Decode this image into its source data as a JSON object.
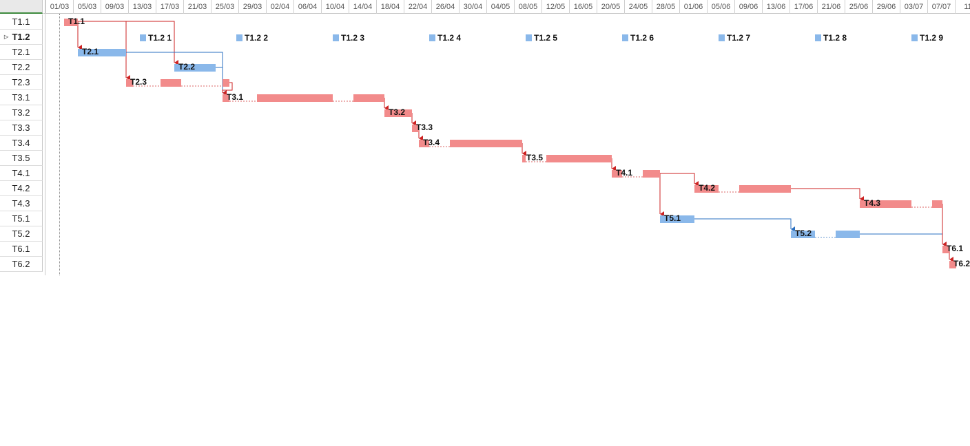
{
  "timeline": {
    "ticks": [
      "01/03",
      "05/03",
      "09/03",
      "13/03",
      "17/03",
      "21/03",
      "25/03",
      "29/03",
      "02/04",
      "06/04",
      "10/04",
      "14/04",
      "18/04",
      "22/04",
      "26/04",
      "30/04",
      "04/05",
      "08/05",
      "12/05",
      "16/05",
      "20/05",
      "24/05",
      "28/05",
      "01/06",
      "05/06",
      "09/06",
      "13/06",
      "17/06",
      "21/06",
      "25/06",
      "29/06",
      "03/07",
      "07/07",
      "11/"
    ]
  },
  "colors": {
    "critical_fill": "#f28b8b",
    "critical_line": "#cc2222",
    "normal_fill": "#8ab8ea",
    "normal_line": "#2a6fc0"
  },
  "rows": [
    {
      "id": "T1.1",
      "bold": false
    },
    {
      "id": "T1.2",
      "bold": true,
      "expander": "▷"
    },
    {
      "id": "T2.1",
      "bold": false
    },
    {
      "id": "T2.2",
      "bold": false
    },
    {
      "id": "T2.3",
      "bold": false
    },
    {
      "id": "T3.1",
      "bold": false
    },
    {
      "id": "T3.2",
      "bold": false
    },
    {
      "id": "T3.3",
      "bold": false
    },
    {
      "id": "T3.4",
      "bold": false
    },
    {
      "id": "T3.5",
      "bold": false
    },
    {
      "id": "T4.1",
      "bold": false
    },
    {
      "id": "T4.2",
      "bold": false
    },
    {
      "id": "T4.3",
      "bold": false
    },
    {
      "id": "T5.1",
      "bold": false
    },
    {
      "id": "T5.2",
      "bold": false
    },
    {
      "id": "T6.1",
      "bold": false
    },
    {
      "id": "T6.2",
      "bold": false
    }
  ],
  "chart_data": {
    "type": "gantt",
    "time_unit": "day-of-2020-from-01-03",
    "tasks": [
      {
        "label": "T1.1",
        "row": 0,
        "critical": true,
        "segments": [
          [
            0,
            2
          ]
        ]
      },
      {
        "label": "T2.1",
        "row": 2,
        "critical": false,
        "segments": [
          [
            2,
            9
          ]
        ]
      },
      {
        "label": "T2.2",
        "row": 3,
        "critical": false,
        "segments": [
          [
            16,
            22
          ]
        ]
      },
      {
        "label": "T2.3",
        "row": 4,
        "critical": true,
        "segments": [
          [
            9,
            10
          ],
          [
            14,
            17
          ],
          [
            23,
            24
          ]
        ]
      },
      {
        "label": "T3.1",
        "row": 5,
        "critical": true,
        "segments": [
          [
            23,
            24
          ],
          [
            28,
            39
          ],
          [
            42,
            46.5
          ]
        ]
      },
      {
        "label": "T3.2",
        "row": 6,
        "critical": true,
        "segments": [
          [
            46.5,
            50.5
          ]
        ]
      },
      {
        "label": "T3.3",
        "row": 7,
        "critical": true,
        "segments": [
          [
            50.5,
            51.5
          ]
        ]
      },
      {
        "label": "T3.4",
        "row": 8,
        "critical": true,
        "segments": [
          [
            51.5,
            53
          ],
          [
            56,
            66.5
          ]
        ]
      },
      {
        "label": "T3.5",
        "row": 9,
        "critical": true,
        "segments": [
          [
            66.5,
            67
          ],
          [
            70,
            79.5
          ]
        ]
      },
      {
        "label": "T4.1",
        "row": 10,
        "critical": true,
        "segments": [
          [
            79.5,
            81
          ],
          [
            84,
            86.5
          ]
        ]
      },
      {
        "label": "T4.2",
        "row": 11,
        "critical": true,
        "segments": [
          [
            91.5,
            95
          ],
          [
            98,
            105.5
          ]
        ]
      },
      {
        "label": "T4.3",
        "row": 12,
        "critical": true,
        "segments": [
          [
            115.5,
            123
          ],
          [
            126,
            127.5
          ]
        ]
      },
      {
        "label": "T5.1",
        "row": 13,
        "critical": false,
        "segments": [
          [
            86.5,
            91.5
          ]
        ]
      },
      {
        "label": "T5.2",
        "row": 14,
        "critical": false,
        "segments": [
          [
            105.5,
            109
          ],
          [
            112,
            115.5
          ]
        ]
      },
      {
        "label": "T6.1",
        "row": 15,
        "critical": true,
        "segments": [
          [
            127.5,
            128.5
          ]
        ]
      },
      {
        "label": "T6.2",
        "row": 16,
        "critical": true,
        "segments": [
          [
            128.5,
            129.5
          ]
        ]
      }
    ],
    "milestones": [
      {
        "label": "T1.2 1",
        "row": 1,
        "t": 11
      },
      {
        "label": "T1.2 2",
        "row": 1,
        "t": 25
      },
      {
        "label": "T1.2 3",
        "row": 1,
        "t": 39
      },
      {
        "label": "T1.2 4",
        "row": 1,
        "t": 53
      },
      {
        "label": "T1.2 5",
        "row": 1,
        "t": 67
      },
      {
        "label": "T1.2 6",
        "row": 1,
        "t": 81
      },
      {
        "label": "T1.2 7",
        "row": 1,
        "t": 95
      },
      {
        "label": "T1.2 8",
        "row": 1,
        "t": 109
      },
      {
        "label": "T1.2 9",
        "row": 1,
        "t": 123
      }
    ],
    "links": [
      {
        "from": "T1.1",
        "to": "T2.1",
        "critical": true
      },
      {
        "from": "T1.1",
        "to": "T2.3",
        "critical": true
      },
      {
        "from": "T1.1",
        "to": "T2.2",
        "critical": true
      },
      {
        "from": "T2.1",
        "to": "T3.1",
        "critical": false
      },
      {
        "from": "T2.2",
        "to": "T3.1",
        "critical": false
      },
      {
        "from": "T2.3",
        "to": "T3.1",
        "critical": true
      },
      {
        "from": "T3.1",
        "to": "T3.2",
        "critical": true
      },
      {
        "from": "T3.2",
        "to": "T3.3",
        "critical": true
      },
      {
        "from": "T3.3",
        "to": "T3.4",
        "critical": true
      },
      {
        "from": "T3.4",
        "to": "T3.5",
        "critical": true
      },
      {
        "from": "T3.5",
        "to": "T4.1",
        "critical": true
      },
      {
        "from": "T4.1",
        "to": "T5.1",
        "critical": true
      },
      {
        "from": "T4.1",
        "to": "T4.2",
        "critical": true
      },
      {
        "from": "T4.2",
        "to": "T4.3",
        "critical": true
      },
      {
        "from": "T5.1",
        "to": "T5.2",
        "critical": false
      },
      {
        "from": "T5.2",
        "to": "T6.1",
        "critical": false
      },
      {
        "from": "T4.3",
        "to": "T6.1",
        "critical": true
      },
      {
        "from": "T6.1",
        "to": "T6.2",
        "critical": true
      }
    ]
  }
}
